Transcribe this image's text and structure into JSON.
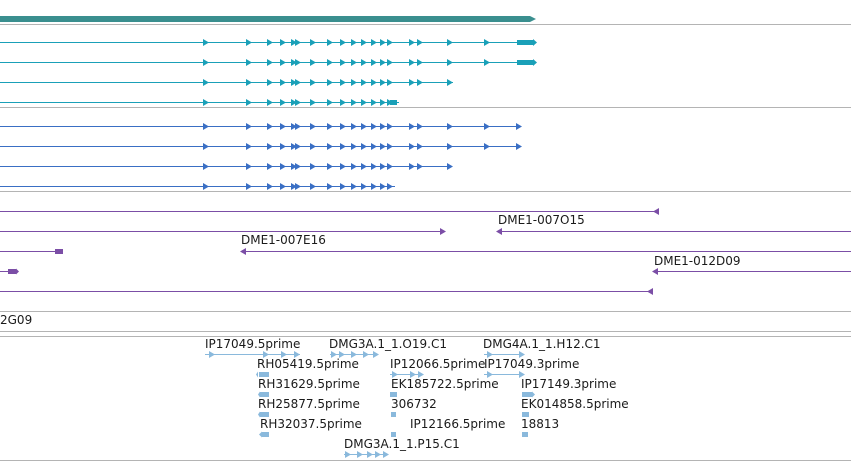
{
  "colors": {
    "gene_bar": "#3a8f8f",
    "teal_transcript": "#1aa0b8",
    "blue_transcript": "#3a6fc4",
    "purple_clone": "#7b4ea6",
    "light_blue_est": "#8ab9dc",
    "separator": "#b4b4b4",
    "label_text": "#1a1a1a"
  },
  "clone_labels": {
    "l1": "DME1-007O15",
    "l2": "DME1-007E16",
    "l3": "DME1-012D09",
    "l4": "2G09"
  },
  "est_labels": {
    "e1": "IP17049.5prime",
    "e2": "DMG3A.1_1.O19.C1",
    "e3": "DMG4A.1_1.H12.C1",
    "e4": "RH05419.5prime",
    "e5": "IP12066.5prime",
    "e6": "IP17049.3prime",
    "e7": "RH31629.5prime",
    "e8": "EK185722.5prime",
    "e9": "IP17149.3prime",
    "e10": "RH25877.5prime",
    "e11": "306732",
    "e12": "EK014858.5prime",
    "e13": "RH32037.5prime",
    "e14": "IP12166.5prime",
    "e15": "18813",
    "e16": "DMG3A.1_1.P15.C1"
  }
}
